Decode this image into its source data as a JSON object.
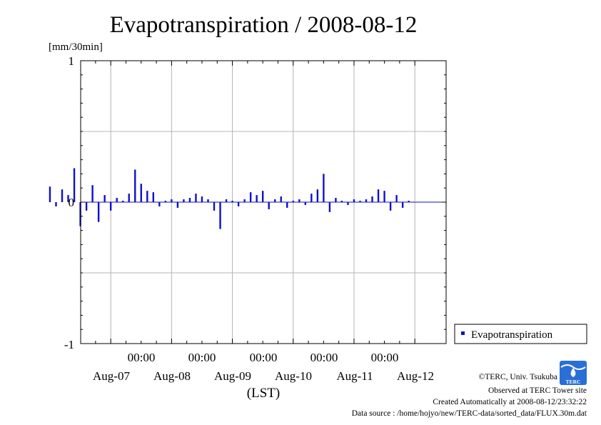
{
  "chart_data": {
    "type": "bar",
    "title": "Evapotranspiration / 2008-08-12",
    "ylabel": "[mm/30min]",
    "xlabel": "(LST)",
    "ylim": [
      -1,
      1
    ],
    "yticks": [
      -1,
      0,
      1
    ],
    "ytick_labels": [
      "-1",
      "0",
      "1"
    ],
    "xtick_times": [
      "00:00",
      "00:00",
      "00:00",
      "00:00",
      "00:00"
    ],
    "xtick_dates": [
      "Aug-07",
      "Aug-08",
      "Aug-09",
      "Aug-10",
      "Aug-11",
      "Aug-12"
    ],
    "xlim_days": [
      0,
      6
    ],
    "grid": true,
    "legend_position": "right",
    "series": [
      {
        "name": "Evapotranspiration",
        "color": "#1010c8",
        "x_days": [
          0.0,
          0.1,
          0.2,
          0.3,
          0.4,
          0.5,
          0.6,
          0.7,
          0.8,
          0.9,
          1.0,
          1.1,
          1.2,
          1.3,
          1.4,
          1.5,
          1.6,
          1.7,
          1.8,
          1.9,
          2.0,
          2.1,
          2.2,
          2.3,
          2.4,
          2.5,
          2.6,
          2.7,
          2.8,
          2.9,
          3.0,
          3.1,
          3.2,
          3.3,
          3.4,
          3.5,
          3.6,
          3.7,
          3.8,
          3.9,
          4.0,
          4.1,
          4.2,
          4.3,
          4.4,
          4.5,
          4.6,
          4.7,
          4.8,
          4.9,
          5.0,
          5.1,
          5.2,
          5.3,
          5.4,
          5.5,
          5.6,
          5.7,
          5.8,
          5.9
        ],
        "values": [
          0.11,
          -0.03,
          0.09,
          0.05,
          0.24,
          -0.17,
          -0.06,
          0.12,
          -0.14,
          0.05,
          -0.06,
          0.03,
          0.01,
          0.06,
          0.23,
          0.13,
          0.08,
          0.07,
          -0.03,
          0.01,
          0.02,
          -0.04,
          0.02,
          0.03,
          0.06,
          0.04,
          0.02,
          -0.06,
          -0.19,
          0.02,
          0.01,
          -0.03,
          0.02,
          0.07,
          0.05,
          0.08,
          -0.05,
          0.02,
          0.04,
          -0.04,
          0.01,
          0.02,
          -0.02,
          0.06,
          0.09,
          0.2,
          -0.07,
          0.03,
          0.01,
          -0.02,
          0.02,
          0.01,
          0.02,
          0.04,
          0.09,
          0.08,
          -0.06,
          0.05,
          -0.04,
          0.01
        ]
      }
    ]
  },
  "credits": {
    "copyright": "©TERC, Univ. Tsukuba",
    "observed": "Observed at TERC Tower site",
    "created": "Created Automatically at 2008-08-12/23:32:22",
    "source": "Data source : /home/hojyo/new/TERC-data/sorted_data/FLUX.30m.dat"
  },
  "logo": {
    "text": "TERC",
    "color": "#2a6fd6"
  }
}
